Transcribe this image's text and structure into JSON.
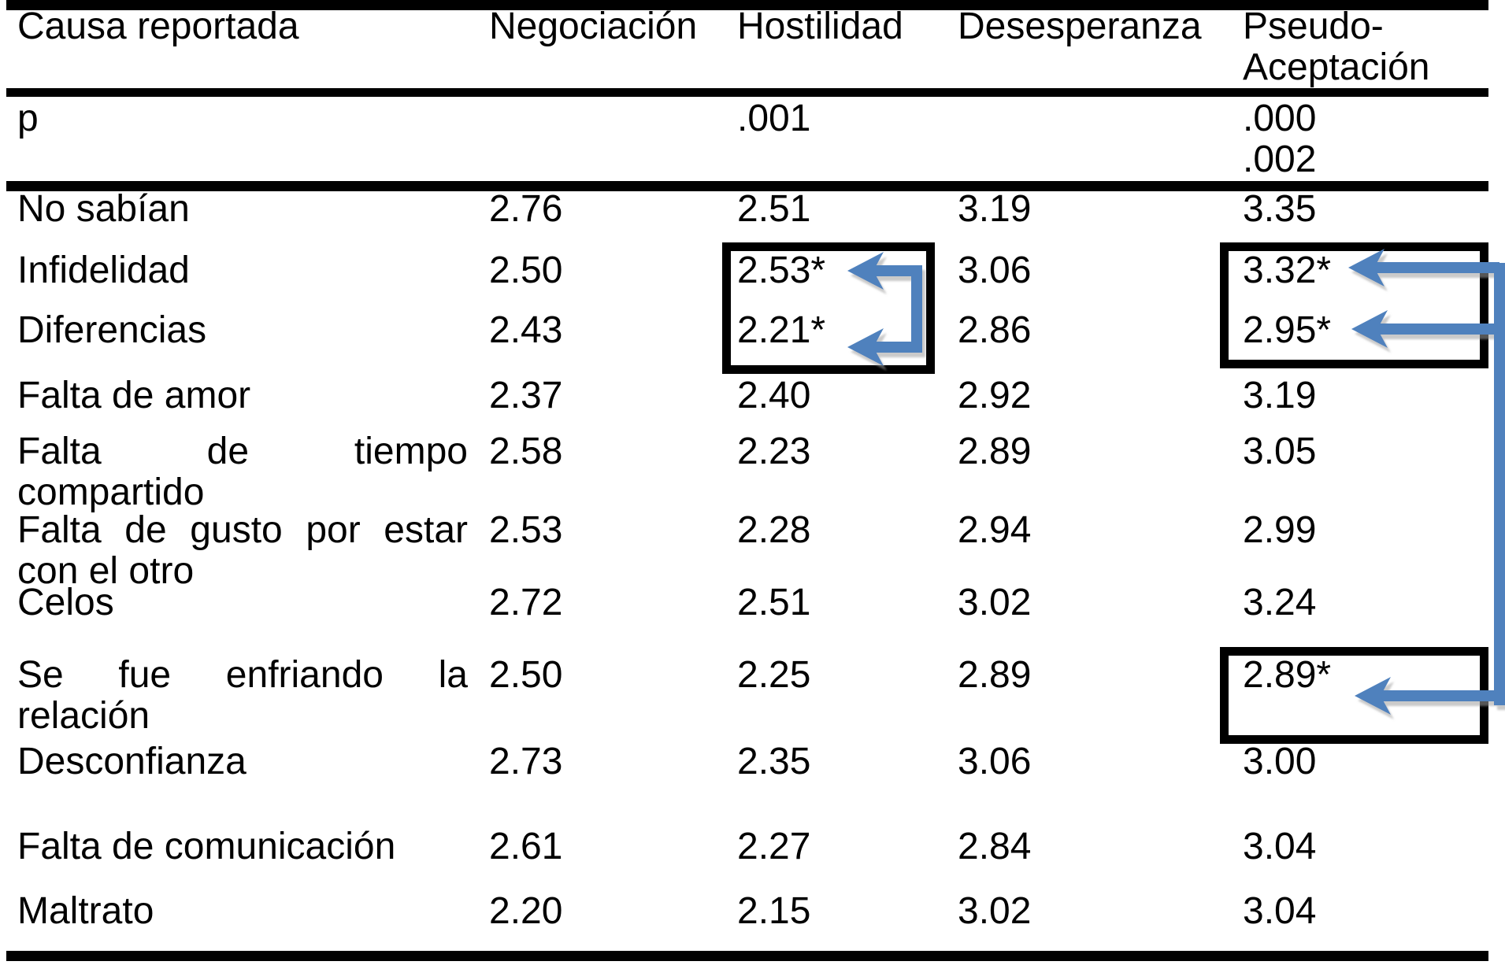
{
  "table": {
    "header": {
      "label": "Causa reportada",
      "columns": [
        [
          "Negociación"
        ],
        [
          "Hostilidad"
        ],
        [
          "Desesperanza"
        ],
        [
          "Pseudo-",
          "Aceptación"
        ]
      ]
    },
    "p_row": {
      "label": "p",
      "values": [
        [],
        [
          ".001"
        ],
        [],
        [
          ".000",
          ".002"
        ]
      ]
    },
    "rows": [
      {
        "label": [
          {
            "text": "No sabían"
          }
        ],
        "values": [
          "2.76",
          "2.51",
          "3.19",
          "3.35"
        ]
      },
      {
        "label": [
          {
            "text": "Infidelidad"
          }
        ],
        "values": [
          "2.50",
          "2.53*",
          "3.06",
          "3.32*"
        ]
      },
      {
        "label": [
          {
            "text": "Diferencias"
          }
        ],
        "values": [
          "2.43",
          "2.21*",
          "2.86",
          "2.95*"
        ]
      },
      {
        "label": [
          {
            "text": "Falta de amor"
          }
        ],
        "values": [
          "2.37",
          "2.40",
          "2.92",
          "3.19"
        ]
      },
      {
        "label": [
          {
            "text": "Falta de tiempo",
            "stretch": true
          },
          {
            "text": "compartido"
          }
        ],
        "values": [
          "2.58",
          "2.23",
          "2.89",
          "3.05"
        ]
      },
      {
        "label": [
          {
            "text": "Falta de gusto por estar",
            "stretch": true
          },
          {
            "text": "con el otro"
          }
        ],
        "values": [
          "2.53",
          "2.28",
          "2.94",
          "2.99"
        ]
      },
      {
        "label": [
          {
            "text": "Celos"
          }
        ],
        "values": [
          "2.72",
          "2.51",
          "3.02",
          "3.24"
        ]
      },
      {
        "label": [
          {
            "text": "Se fue enfriando la",
            "stretch": true
          },
          {
            "text": "relación"
          }
        ],
        "values": [
          "2.50",
          "2.25",
          "2.89",
          "2.89*"
        ]
      },
      {
        "label": [
          {
            "text": "Desconfianza"
          }
        ],
        "values": [
          "2.73",
          "2.35",
          "3.06",
          "3.00"
        ]
      },
      {
        "label": [
          {
            "text": "Falta de comunicación"
          }
        ],
        "values": [
          "2.61",
          "2.27",
          "2.84",
          "3.04"
        ]
      },
      {
        "label": [
          {
            "text": "Maltrato"
          }
        ],
        "values": [
          "2.20",
          "2.15",
          "3.02",
          "3.04"
        ]
      }
    ]
  },
  "annotations": {
    "significance_marker": "*",
    "arrow_color": "#4f81bd",
    "box_border_color": "#000000",
    "highlight_boxes": [
      {
        "column": "Hostilidad",
        "rows": [
          "Infidelidad",
          "Diferencias"
        ],
        "values": [
          "2.53*",
          "2.21*"
        ]
      },
      {
        "column": "Pseudo-Aceptación",
        "rows": [
          "Infidelidad",
          "Diferencias"
        ],
        "values": [
          "3.32*",
          "2.95*"
        ]
      },
      {
        "column": "Pseudo-Aceptación",
        "rows": [
          "Se fue enfriando la relación"
        ],
        "values": [
          "2.89*"
        ]
      }
    ]
  }
}
